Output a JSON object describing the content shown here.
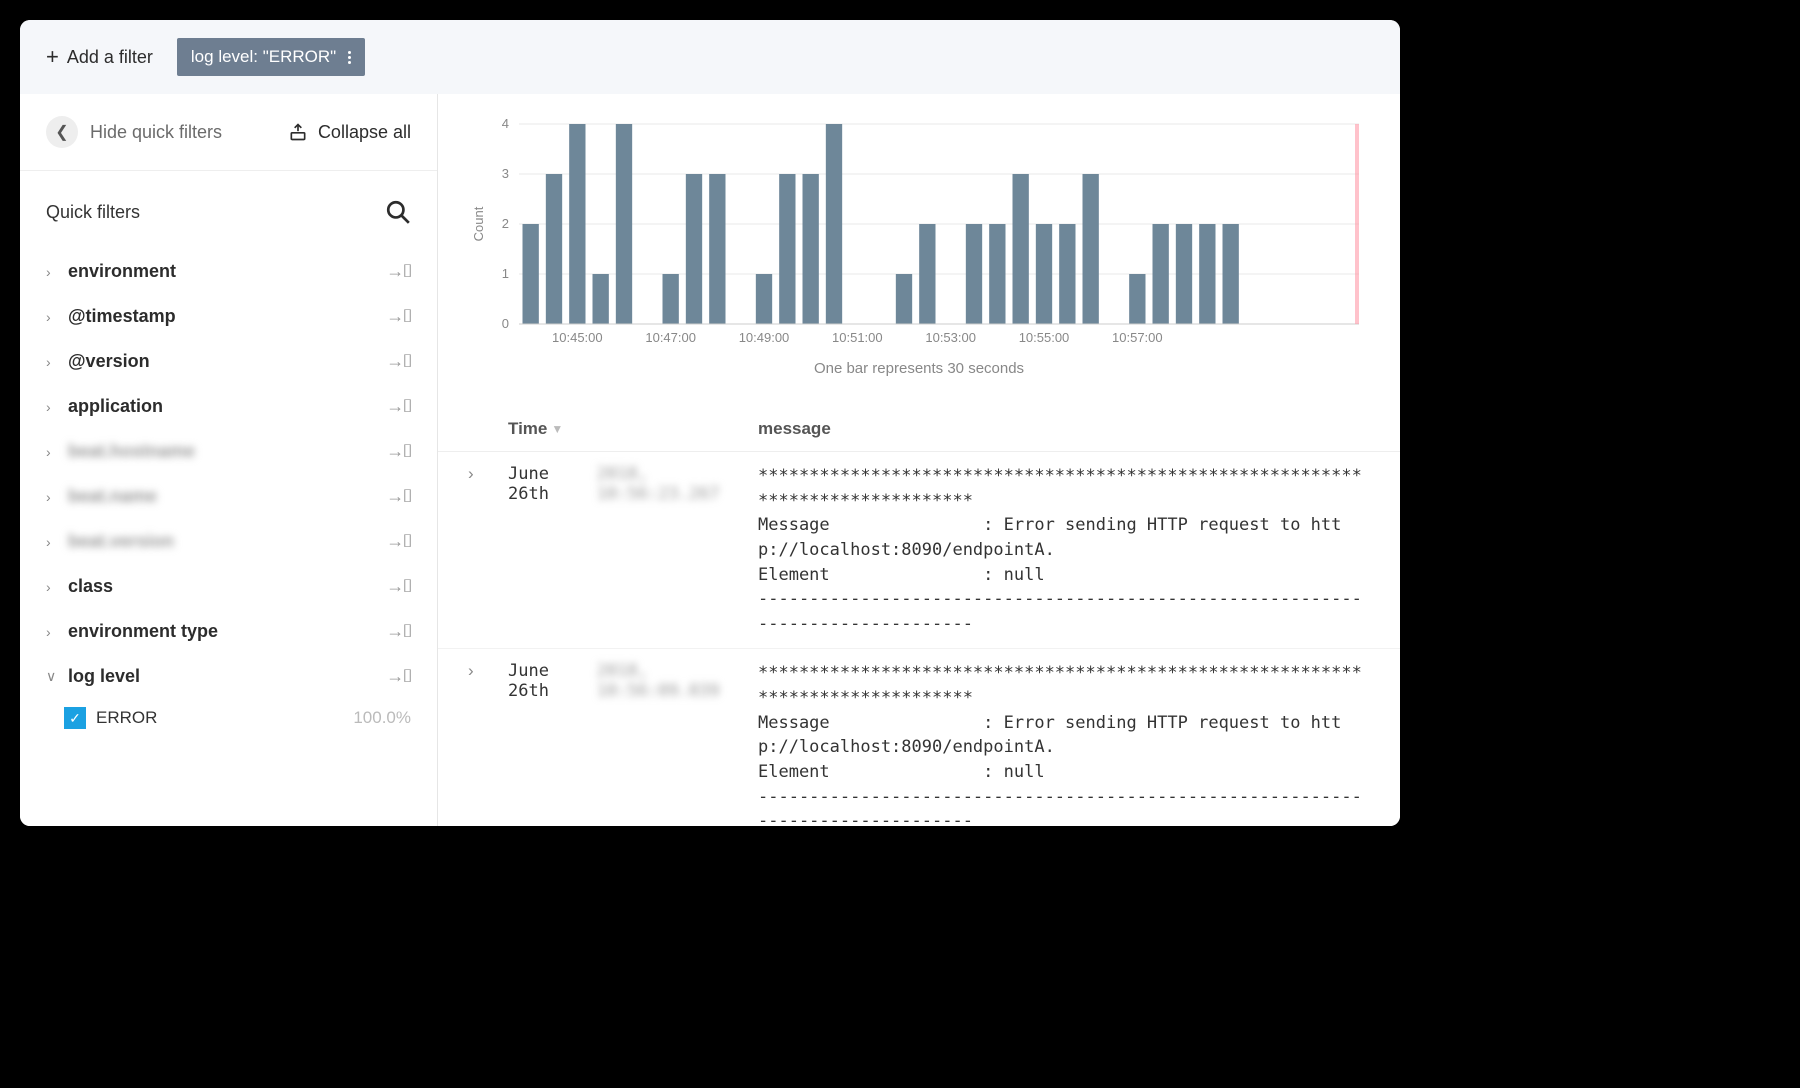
{
  "filterBar": {
    "addFilter": "Add a filter",
    "pillText": "log level: \"ERROR\""
  },
  "sidebar": {
    "hideLabel": "Hide quick filters",
    "collapseLabel": "Collapse all",
    "quickFiltersTitle": "Quick filters",
    "items": [
      {
        "name": "environment",
        "blur": false,
        "expanded": false
      },
      {
        "name": "@timestamp",
        "blur": false,
        "expanded": false
      },
      {
        "name": "@version",
        "blur": false,
        "expanded": false
      },
      {
        "name": "application",
        "blur": false,
        "expanded": false
      },
      {
        "name": "beat.hostname",
        "blur": true,
        "expanded": false
      },
      {
        "name": "beat.name",
        "blur": true,
        "expanded": false
      },
      {
        "name": "beat.version",
        "blur": true,
        "expanded": false
      },
      {
        "name": "class",
        "blur": false,
        "expanded": false
      },
      {
        "name": "environment type",
        "blur": false,
        "expanded": false
      },
      {
        "name": "log level",
        "blur": false,
        "expanded": true
      }
    ],
    "logLevelValue": {
      "label": "ERROR",
      "pct": "100.0%"
    }
  },
  "chart": {
    "ylabel": "Count",
    "ymax": 4,
    "yticks": [
      0,
      1,
      2,
      3,
      4
    ],
    "bar_color": "#6e8799",
    "grid_color": "#e8e8e8",
    "axis_color": "#cccccc",
    "tick_font_color": "#888888",
    "highlight_color": "#ff9aa8",
    "bars": [
      2,
      3,
      4,
      1,
      4,
      0,
      1,
      3,
      3,
      0,
      1,
      3,
      3,
      4,
      0,
      0,
      1,
      2,
      0,
      2,
      2,
      3,
      2,
      2,
      3,
      0,
      1,
      2,
      2,
      2,
      2,
      0,
      0,
      0,
      0,
      0
    ],
    "xticks": [
      {
        "pos": 2,
        "label": "10:45:00"
      },
      {
        "pos": 6,
        "label": "10:47:00"
      },
      {
        "pos": 10,
        "label": "10:49:00"
      },
      {
        "pos": 14,
        "label": "10:51:00"
      },
      {
        "pos": 18,
        "label": "10:53:00"
      },
      {
        "pos": 22,
        "label": "10:55:00"
      },
      {
        "pos": 26,
        "label": "10:57:00"
      }
    ],
    "caption": "One bar represents 30 seconds"
  },
  "table": {
    "headers": {
      "time": "Time",
      "message": "message"
    },
    "rows": [
      {
        "date": "June 26th",
        "rest": "2018, 10:56:23.267",
        "msg": "********************************************************************************\nMessage               : Error sending HTTP request to http://localhost:8090/endpointA.\nElement               : null\n--------------------------------------------------------------------------------"
      },
      {
        "date": "June 26th",
        "rest": "2018, 10:56:09.039",
        "msg": "********************************************************************************\nMessage               : Error sending HTTP request to http://localhost:8090/endpointA.\nElement               : null\n--------------------------------------------------------------------------------"
      }
    ]
  }
}
